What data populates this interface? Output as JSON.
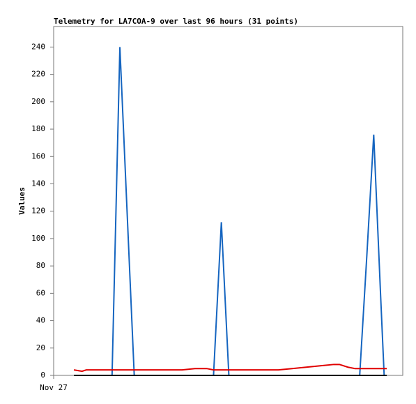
{
  "chart_data": {
    "type": "line",
    "title": "Telemetry for LA7COA-9 over last 96 hours (31 points)",
    "y_label": "Values",
    "x": [
      6.2,
      8.7,
      10.0,
      13.4,
      17.9,
      20.3,
      24.7,
      29.4,
      34.8,
      39.4,
      43.3,
      46.9,
      49.0,
      51.4,
      53.7,
      58.2,
      63.5,
      68.9,
      73.1,
      77.4,
      81.7,
      85.9,
      87.6,
      90.2,
      92.3,
      93.8,
      96.0,
      98.1,
      100.2,
      101.3,
      102.1
    ],
    "series": [
      {
        "color": "#1565c0",
        "values": [
          0,
          0,
          0,
          0,
          0,
          240,
          0,
          0,
          0,
          0,
          0,
          0,
          0,
          112,
          0,
          0,
          0,
          0,
          0,
          0,
          0,
          0,
          0,
          0,
          0,
          0,
          88,
          176,
          59,
          0,
          0
        ]
      },
      {
        "color": "#e00000",
        "values": [
          4,
          3,
          4,
          4,
          4,
          4,
          4,
          4,
          4,
          4,
          5,
          5,
          4,
          4,
          4,
          4,
          4,
          4,
          5,
          6,
          7,
          8,
          8,
          6,
          5,
          5,
          5,
          5,
          5,
          5,
          5
        ]
      },
      {
        "color": "#000000",
        "values": [
          0,
          0,
          0,
          0,
          0,
          0,
          0,
          0,
          0,
          0,
          0,
          0,
          0,
          0,
          0,
          0,
          0,
          0,
          0,
          0,
          0,
          0,
          0,
          0,
          0,
          0,
          0,
          0,
          0,
          0,
          0
        ]
      }
    ],
    "xlim": [
      0,
      107
    ],
    "xticks": [
      {
        "value": 0,
        "label": "Nov 27"
      }
    ],
    "ylim": [
      0,
      255
    ],
    "yticks": [
      0,
      20,
      40,
      60,
      80,
      100,
      120,
      140,
      160,
      180,
      200,
      220,
      240
    ]
  }
}
